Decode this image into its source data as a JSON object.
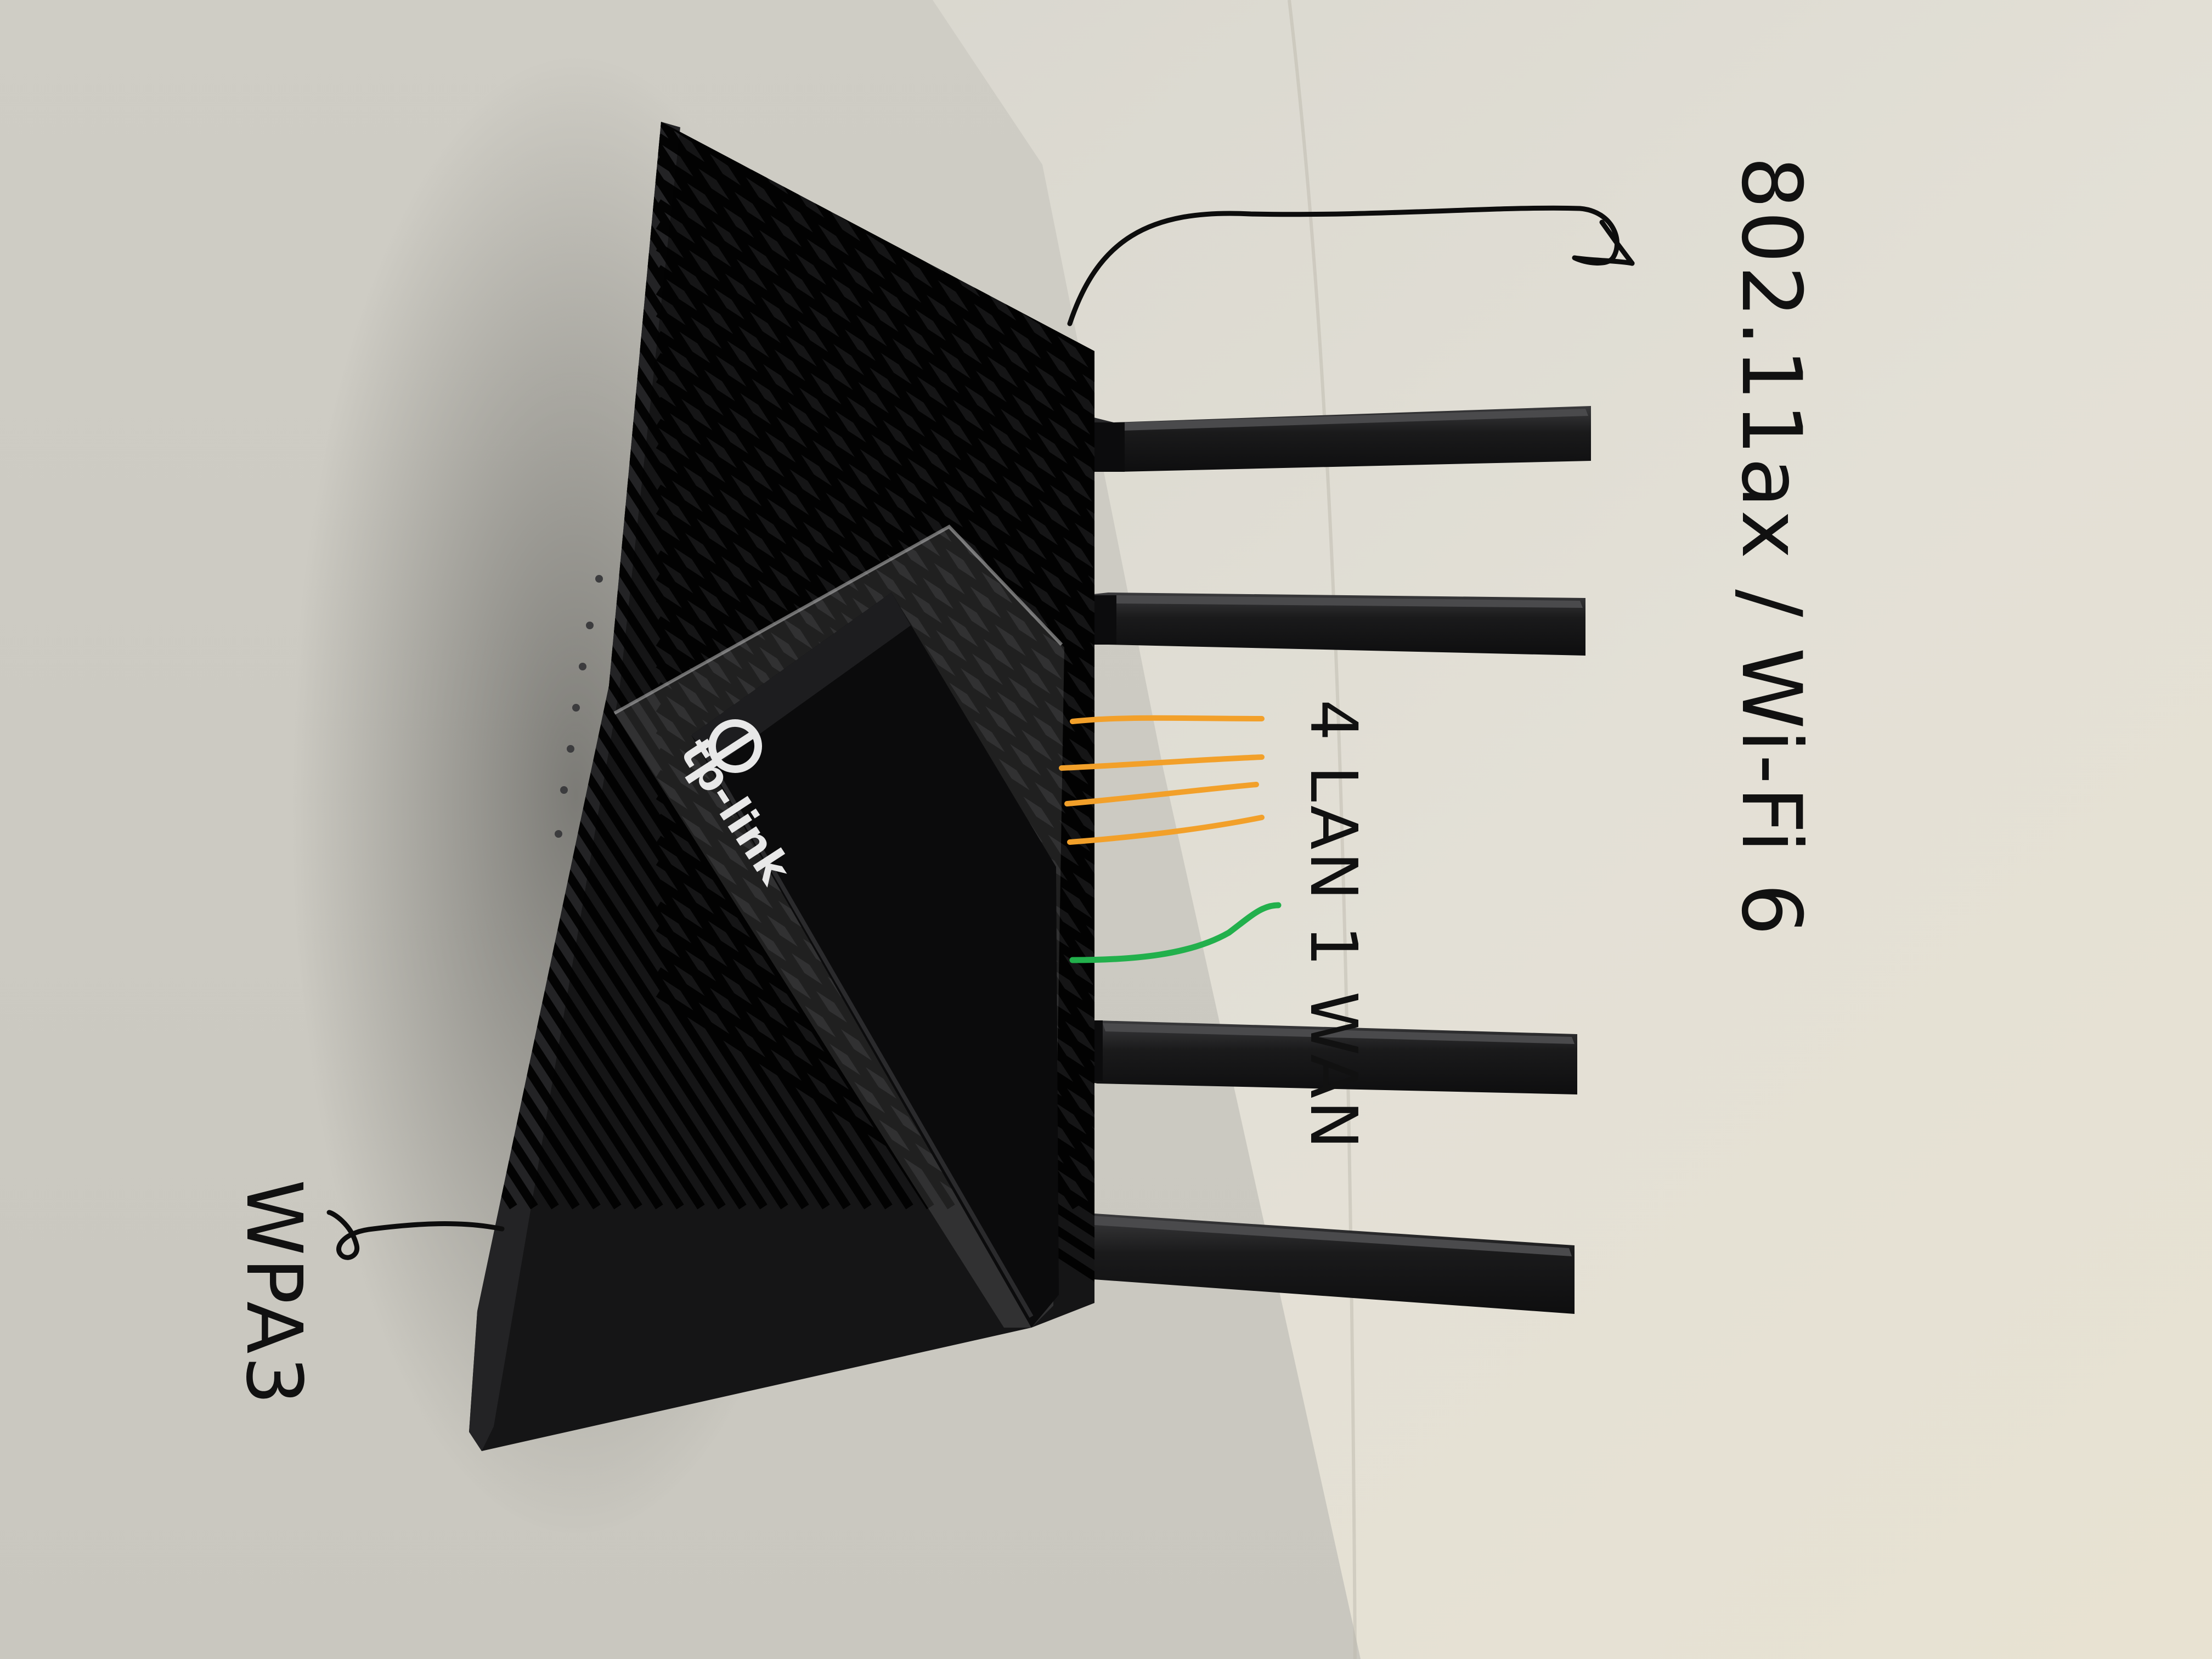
{
  "annotations": {
    "wifi_standard": "802.11ax / Wi-Fi 6",
    "ports": "4 LAN 1 WAN",
    "security": "WPA3"
  },
  "device": {
    "brand": "tp-link",
    "antenna_count": 4
  },
  "colors": {
    "wall": "#dcd9cf",
    "router": "#151516",
    "lan_markers": "#f2a02a",
    "wan_marker": "#22b04c",
    "ink": "#111111"
  }
}
